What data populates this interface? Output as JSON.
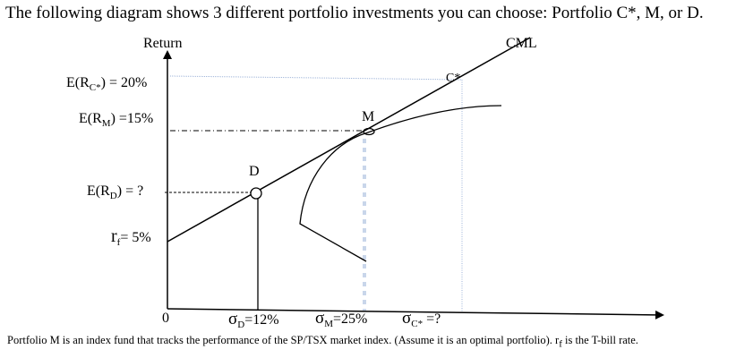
{
  "title": "The following diagram shows 3 different portfolio investments you can choose: Portfolio C*, M, or D.",
  "footer": "Portfolio M is an index fund that tracks the performance of the SP/TSX market index. (Assume it is an optimal portfolio).  r",
  "footer_sub": "f",
  "footer_end": " is the T-bill rate.",
  "axis": {
    "y_label": "Return",
    "origin": "0"
  },
  "line_label": "CML",
  "points": {
    "c": "C*",
    "m": "M",
    "d": "D"
  },
  "y_labels": {
    "erc_pre": "E(R",
    "erc_sub": "C*",
    "erc_post": ") = 20%",
    "erm_pre": "E(R",
    "erm_sub": "M",
    "erm_post": ") =15%",
    "erd_pre": "E(R",
    "erd_sub": "D",
    "erd_post": ") = ?",
    "rf_pre": "r",
    "rf_sub": "f",
    "rf_post": "= 5%"
  },
  "x_labels": {
    "sd_sym": "σ",
    "sd_sub": "D",
    "sd_post": "=12%",
    "sm_sym": "σ",
    "sm_sub": "M",
    "sm_post": "=25%",
    "sc_sym": "σ",
    "sc_sub": "C*",
    "sc_post": " =?"
  },
  "colors": {
    "guide_blue": "#9db3d8"
  }
}
